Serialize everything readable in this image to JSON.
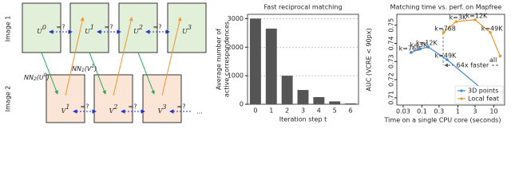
{
  "diagram": {
    "row_labels": [
      "Image 1",
      "Image 2"
    ],
    "top_nodes": [
      {
        "base": "U",
        "sup": "0"
      },
      {
        "base": "U",
        "sup": "1"
      },
      {
        "base": "U",
        "sup": "2"
      },
      {
        "base": "U",
        "sup": "3"
      }
    ],
    "bottom_nodes": [
      {
        "base": "V",
        "sup": "1"
      },
      {
        "base": "V",
        "sup": "2"
      },
      {
        "base": "V",
        "sup": "3"
      }
    ],
    "equality_mark": "=?",
    "nn_labels": [
      {
        "base": "NN",
        "sub": "2",
        "arg": "(U",
        "argsup": "0",
        "close": ")"
      },
      {
        "base": "NN",
        "sub": "1",
        "arg": "(V",
        "argsup": "1",
        "close": ")"
      }
    ],
    "ellipsis": "..."
  },
  "chart_data": [
    {
      "type": "bar",
      "title": "Fast reciprocal matching",
      "ylabel": [
        "Average number of",
        "active correspondences"
      ],
      "xlabel": "Iteration step t",
      "categories": [
        "0",
        "1",
        "2",
        "3",
        "4",
        "5",
        "6"
      ],
      "values": [
        3000,
        2650,
        1000,
        500,
        250,
        100,
        30
      ],
      "color": "#555555",
      "ylim": [
        0,
        3150
      ],
      "yticks": [
        0,
        1000,
        2000,
        3000
      ],
      "grid": true
    },
    {
      "type": "line",
      "title": "Matching time vs. perf. on Mapfree",
      "xlabel": "Time on a single CPU core (seconds)",
      "ylabel": "AUC (VCRE < 90px)",
      "xscale": "log",
      "xlim": [
        0.02,
        20
      ],
      "xticks": [
        0.03,
        0.1,
        0.3,
        1,
        3,
        10
      ],
      "ylim": [
        0.706,
        0.756
      ],
      "yticks": [
        0.71,
        0.72,
        0.73,
        0.74,
        0.75
      ],
      "legend": "lower right",
      "annotation": "64x faster",
      "series": [
        {
          "name": "3D points",
          "color": "#3b8bd4",
          "x": [
            0.05,
            0.09,
            0.15,
            0.5,
            7
          ],
          "values": [
            0.735,
            0.737,
            0.738,
            0.731,
            0.712
          ],
          "point_labels": [
            "k=768",
            "k=3K",
            "k=12K",
            "k=49K",
            "all"
          ]
        },
        {
          "name": "Local feat",
          "color": "#f0962e",
          "x": [
            0.4,
            0.9,
            3,
            8,
            15
          ],
          "values": [
            0.746,
            0.752,
            0.753,
            0.746,
            0.733
          ],
          "point_labels": [
            "k=768",
            "k=3K",
            "k=12K",
            "k=49K",
            "all"
          ]
        }
      ]
    }
  ]
}
